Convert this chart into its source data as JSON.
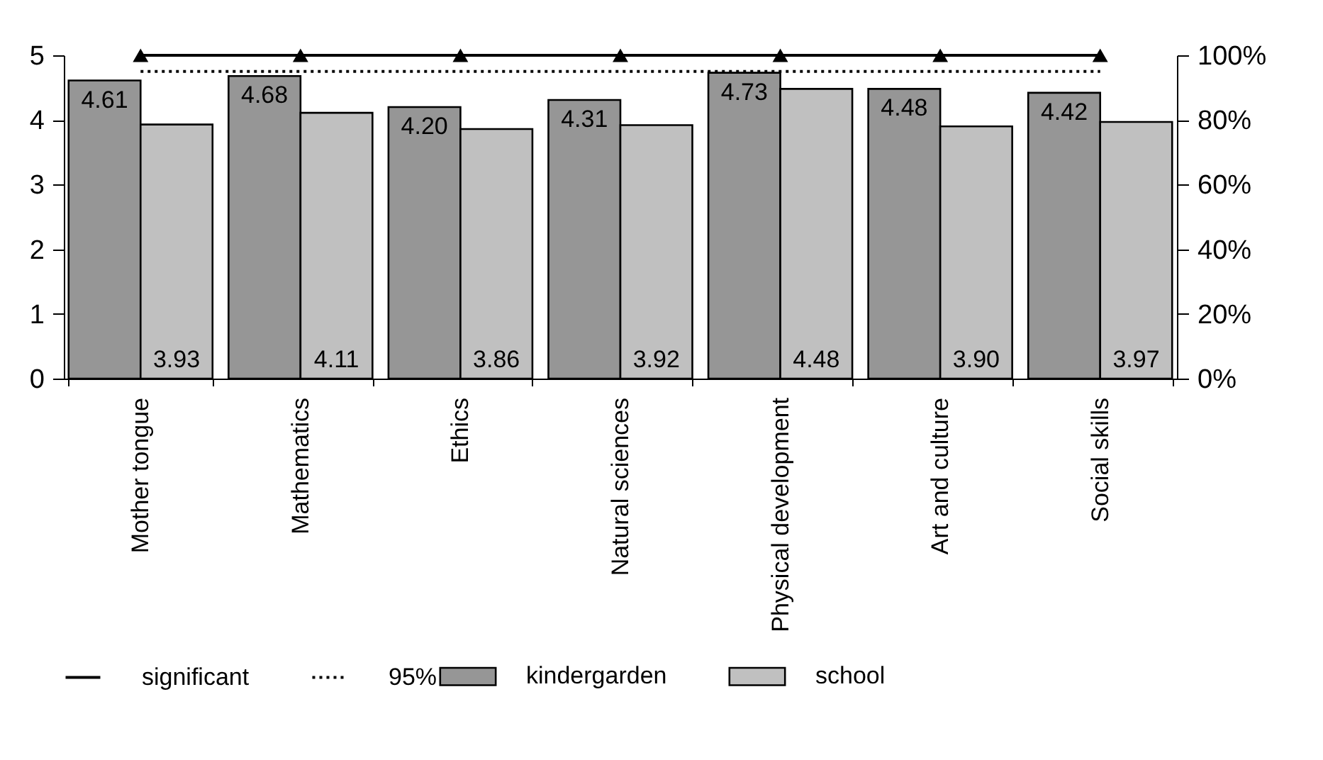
{
  "chart_data": {
    "type": "bar",
    "categories": [
      "Mother tongue",
      "Mathematics",
      "Ethics",
      "Natural sciences",
      "Physical development",
      "Art and culture",
      "Social skills"
    ],
    "series": [
      {
        "name": "kindergarden",
        "color": "#969696",
        "values": [
          4.61,
          4.68,
          4.2,
          4.31,
          4.73,
          4.48,
          4.42
        ],
        "value_labels": [
          "4.61",
          "4.68",
          "4.20",
          "4.31",
          "4.73",
          "4.48",
          "4.42"
        ]
      },
      {
        "name": "school",
        "color": "#c0c0c0",
        "values": [
          3.93,
          4.11,
          3.86,
          3.92,
          4.48,
          3.9,
          3.97
        ],
        "value_labels": [
          "3.93",
          "4.11",
          "3.86",
          "3.92",
          "4.48",
          "3.90",
          "3.97"
        ]
      },
      {
        "name": "significant",
        "type": "line",
        "axis": "y2",
        "color": "#000000",
        "marker": "triangle",
        "line_style": "solid",
        "values": [
          100,
          100,
          100,
          100,
          100,
          100,
          100
        ]
      },
      {
        "name": "95%",
        "type": "line",
        "axis": "y2",
        "color": "#000000",
        "marker": "none",
        "line_style": "dotted",
        "values": [
          95,
          95,
          95,
          95,
          95,
          95,
          95
        ]
      }
    ],
    "ylim": [
      0,
      5
    ],
    "yticks": [
      0,
      1,
      2,
      3,
      4,
      5
    ],
    "y2lim": [
      0,
      100
    ],
    "y2ticks": [
      {
        "value": 0,
        "label": "0%"
      },
      {
        "value": 20,
        "label": "20%"
      },
      {
        "value": 40,
        "label": "40%"
      },
      {
        "value": 60,
        "label": "60%"
      },
      {
        "value": 80,
        "label": "80%"
      },
      {
        "value": 100,
        "label": "100%"
      }
    ],
    "legend": "bottom",
    "grid": false
  }
}
